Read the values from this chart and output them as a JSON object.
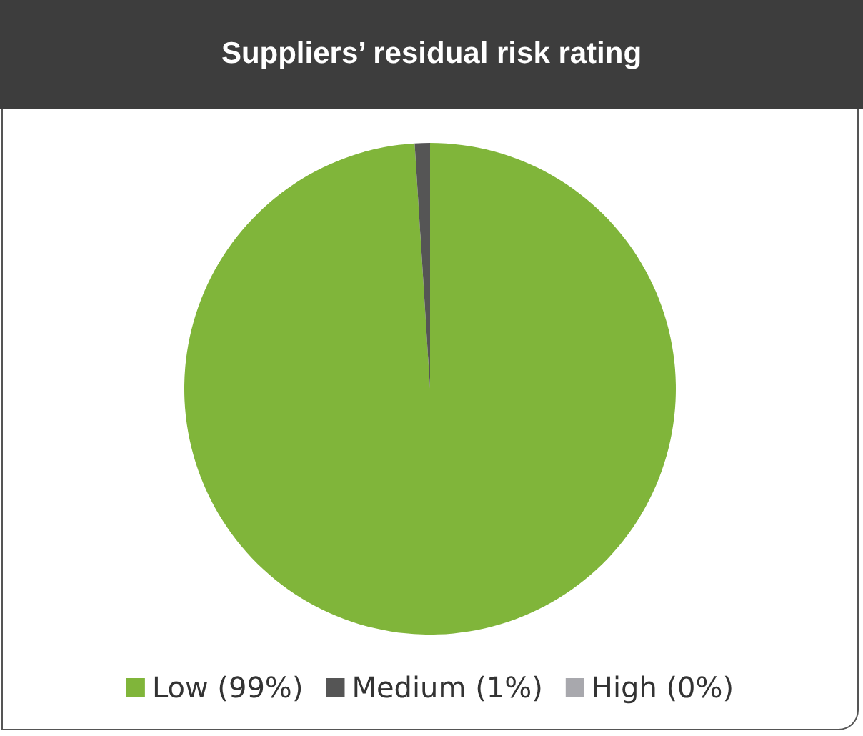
{
  "chart_data": {
    "type": "pie",
    "title": "Suppliers’ residual risk rating",
    "categories": [
      "Low (99%)",
      "Medium (1%)",
      "High (0%)"
    ],
    "values": [
      99,
      1,
      0
    ],
    "colors": [
      "#80b53a",
      "#555555",
      "#a8a8ad"
    ],
    "legend": "bottom"
  }
}
